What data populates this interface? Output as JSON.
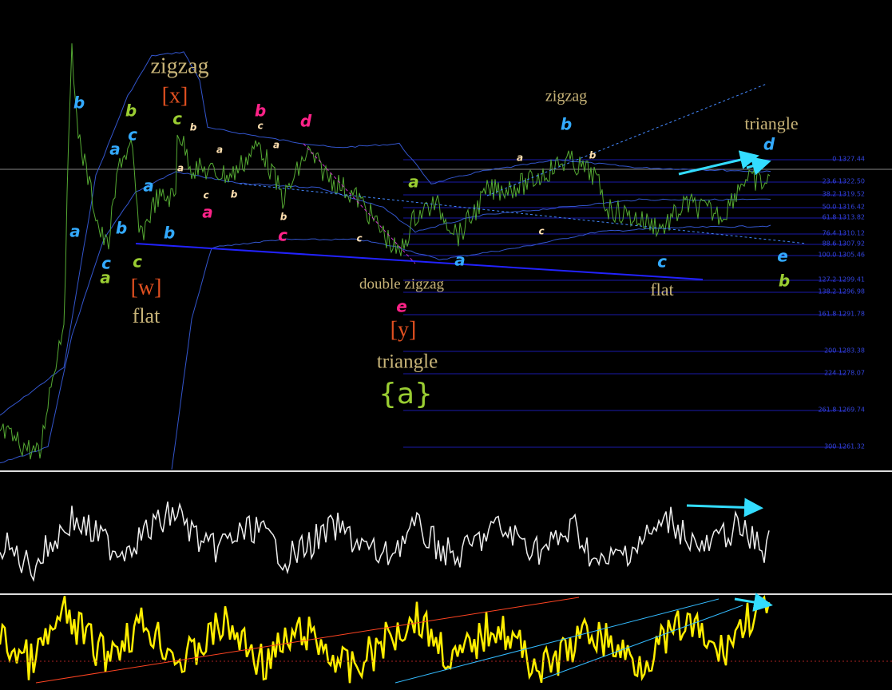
{
  "labels": [
    "zigzag",
    "[x]",
    "flat",
    "[w]",
    "double zigzag",
    "[y]",
    "triangle",
    "{a}",
    "zigzag",
    "triangle",
    "flat"
  ],
  "waves": [
    "b",
    "b",
    "c",
    "a",
    "a",
    "c",
    "a",
    "b",
    "c",
    "a",
    "b",
    "c",
    "b",
    "d",
    "a",
    "c",
    "e",
    "a",
    "a",
    "b",
    "c",
    "d",
    "e",
    "b",
    "a",
    "b",
    "c",
    "a",
    "b",
    "c",
    "a",
    "b",
    "c",
    "a",
    "b",
    "c"
  ],
  "fib_levels": [
    "0 1327.44",
    "23.6 1322.50",
    "38.2 1319.52",
    "50.0 1316.42",
    "61.8 1313.82",
    "76.4 1310.12",
    "88.6 1307.92",
    "100.0 1305.46",
    "127.2 1299.41",
    "138.2 1296.98",
    "161.8 1291.78",
    "200 1283.38",
    "224 1278.07",
    "261.8 1269.74",
    "300 1261.32"
  ]
}
